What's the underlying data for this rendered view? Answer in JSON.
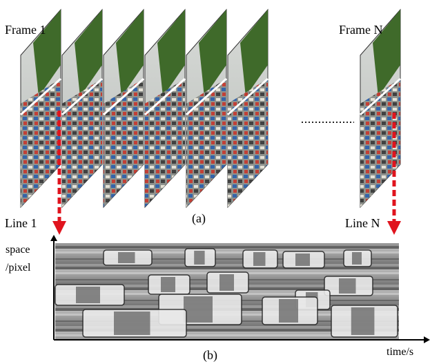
{
  "labels": {
    "frame_first": "Frame 1",
    "frame_last": "Frame N",
    "line_first": "Line 1",
    "line_last": "Line N",
    "caption_a": "(a)",
    "caption_b": "(b)",
    "y_axis_line1": "space",
    "y_axis_line2": "/pixel",
    "x_axis": "time/s"
  },
  "colors": {
    "scan_arrow": "#e0141e",
    "scan_line": "#ffffff",
    "axis": "#000000",
    "sky": "#c9ccc9",
    "trees": "#3f6a2a",
    "road": "#9a9c98",
    "stmap_bg": "#8e8e8e"
  },
  "frames": {
    "visible_stack_count": 6,
    "frames_after_ellipsis": 1
  }
}
